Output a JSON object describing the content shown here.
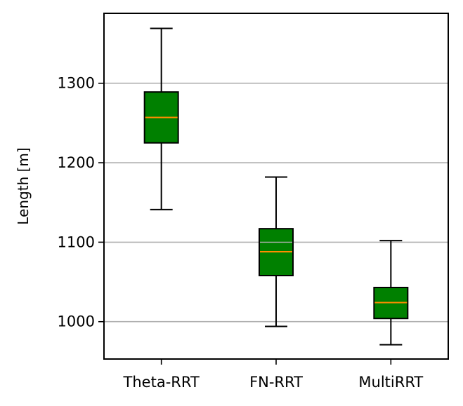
{
  "chart_data": {
    "type": "box",
    "title": "",
    "xlabel": "",
    "ylabel": "Length [m]",
    "categories": [
      "Theta-RRT",
      "FN-RRT",
      "MultiRRT"
    ],
    "ylim": [
      953,
      1388
    ],
    "yticks": [
      1000,
      1100,
      1200,
      1300
    ],
    "grid": "horizontal",
    "box_color": "#008000",
    "median_color": "#ff8c00",
    "boxes": [
      {
        "whisker_low": 1141,
        "q1": 1225,
        "median": 1257,
        "q3": 1289,
        "whisker_high": 1369
      },
      {
        "whisker_low": 994,
        "q1": 1058,
        "median": 1088,
        "q3": 1117,
        "whisker_high": 1182
      },
      {
        "whisker_low": 971,
        "q1": 1004,
        "median": 1024,
        "q3": 1043,
        "whisker_high": 1102
      }
    ]
  }
}
